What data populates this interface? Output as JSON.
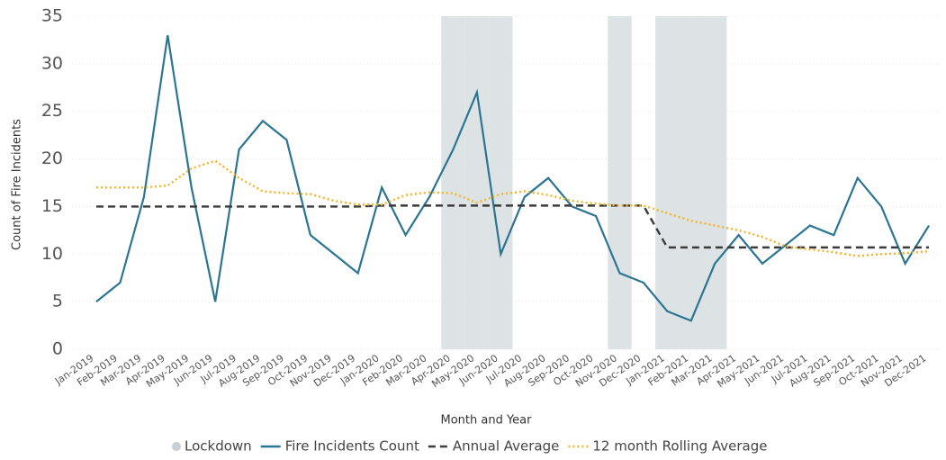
{
  "chart_data": {
    "type": "line",
    "x_label": "Month and Year",
    "y_label": "Count of Fire Incidents",
    "categories": [
      "Jan-2019",
      "Feb-2019",
      "Mar-2019",
      "Apr-2019",
      "May-2019",
      "Jun-2019",
      "Jul-2019",
      "Aug-2019",
      "Sep-2019",
      "Oct-2019",
      "Nov-2019",
      "Dec-2019",
      "Jan-2020",
      "Feb-2020",
      "Mar-2020",
      "Apr-2020",
      "May-2020",
      "Jun-2020",
      "Jul-2020",
      "Aug-2020",
      "Sep-2020",
      "Oct-2020",
      "Nov-2020",
      "Dec-2020",
      "Jan-2021",
      "Feb-2021",
      "Mar-2021",
      "Apr-2021",
      "May-2021",
      "Jun-2021",
      "Jul-2021",
      "Aug-2021",
      "Sep-2021",
      "Oct-2021",
      "Nov-2021",
      "Dec-2021"
    ],
    "series": [
      {
        "name": "Lockdown",
        "type": "column",
        "color": "#dde3e4",
        "values": [
          null,
          null,
          null,
          null,
          null,
          null,
          null,
          null,
          null,
          null,
          null,
          null,
          null,
          null,
          null,
          35,
          35,
          35,
          null,
          null,
          null,
          null,
          35,
          null,
          35,
          35,
          35,
          null,
          null,
          null,
          null,
          null,
          null,
          null,
          null,
          null
        ]
      },
      {
        "name": "Fire Incidents Count",
        "type": "line",
        "style": "solid",
        "color": "#2b7593",
        "values": [
          5,
          7,
          16,
          33,
          17,
          5,
          21,
          24,
          22,
          12,
          10,
          8,
          17,
          12,
          16,
          21,
          27,
          10,
          16,
          18,
          15,
          14,
          8,
          7,
          4,
          3,
          9,
          12,
          9,
          11,
          13,
          12,
          18,
          15,
          9,
          13
        ]
      },
      {
        "name": "Annual Average",
        "type": "line",
        "style": "dashed",
        "color": "#3a3a3a",
        "values": [
          15,
          15,
          15,
          15,
          15,
          15,
          15,
          15,
          15,
          15,
          15,
          15,
          15.1,
          15.1,
          15.1,
          15.1,
          15.1,
          15.1,
          15.1,
          15.1,
          15.1,
          15.1,
          15.1,
          15.1,
          10.7,
          10.7,
          10.7,
          10.7,
          10.7,
          10.7,
          10.7,
          10.7,
          10.7,
          10.7,
          10.7,
          10.7
        ]
      },
      {
        "name": "12 month Rolling Average",
        "type": "line",
        "style": "dotted",
        "color": "#f2b327",
        "values": [
          17,
          17,
          17,
          17.2,
          19,
          19.8,
          18,
          16.6,
          16.4,
          16.3,
          15.6,
          15.2,
          15.2,
          16.2,
          16.5,
          16.4,
          15.4,
          16.3,
          16.6,
          16.2,
          15.6,
          15.3,
          15.1,
          15.1,
          14.3,
          13.5,
          13,
          12.5,
          11.8,
          10.8,
          10.5,
          10.2,
          9.8,
          10,
          10.1,
          10.3
        ]
      }
    ],
    "ylim": [
      0,
      35
    ],
    "yticks": [
      0,
      5,
      10,
      15,
      20,
      25,
      30,
      35
    ],
    "grid": true
  }
}
